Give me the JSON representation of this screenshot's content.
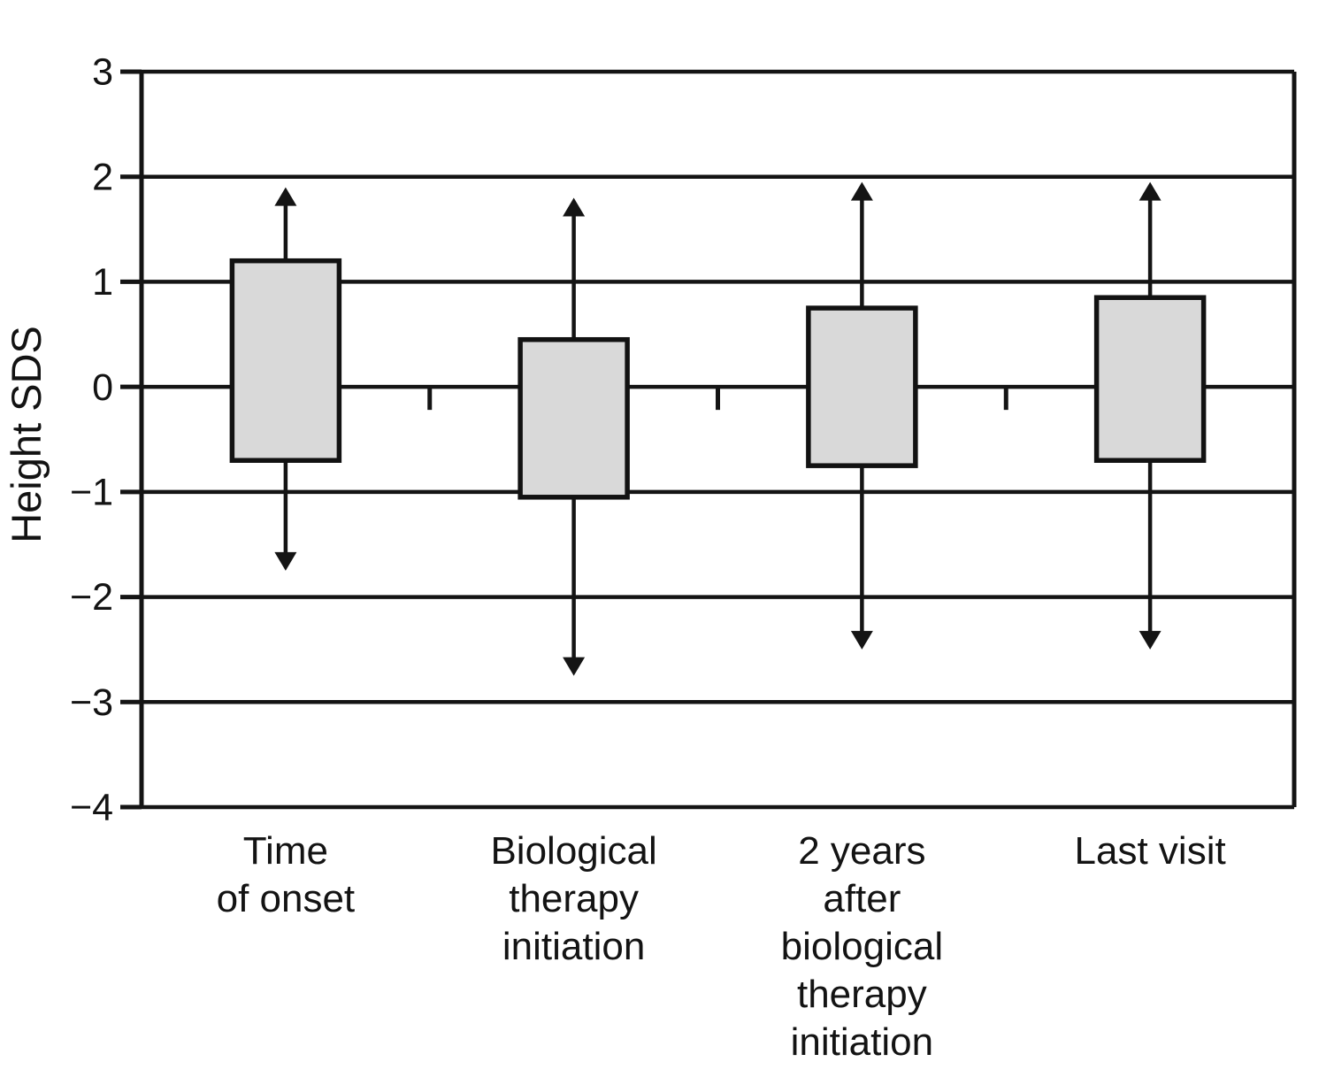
{
  "figure": {
    "background": "#ffffff"
  },
  "chart_data": {
    "type": "box",
    "title": "",
    "xlabel": "",
    "ylabel": "Height SDS",
    "ylim": [
      -4,
      3
    ],
    "grid": "horizontal lines at every integer, full plot width",
    "legend": "none",
    "frame": true,
    "yticks": [
      {
        "v": 3,
        "label": "3"
      },
      {
        "v": 2,
        "label": "2"
      },
      {
        "v": 1,
        "label": "1"
      },
      {
        "v": 0,
        "label": "0"
      },
      {
        "v": -1,
        "label": "−1"
      },
      {
        "v": -2,
        "label": "−2"
      },
      {
        "v": -3,
        "label": "−3"
      },
      {
        "v": -4,
        "label": "−4"
      }
    ],
    "categories": [
      {
        "id": "time-of-onset",
        "label": "Time of onset",
        "label_lines": [
          "Time",
          "of onset"
        ],
        "box_low": -0.7,
        "box_high": 1.2,
        "whisker_low": -1.75,
        "whisker_high": 1.9
      },
      {
        "id": "biological-therapy-initiation",
        "label": "Biological therapy initiation",
        "label_lines": [
          "Biological",
          "therapy",
          "initiation"
        ],
        "box_low": -1.05,
        "box_high": 0.45,
        "whisker_low": -2.75,
        "whisker_high": 1.8
      },
      {
        "id": "2-years-after-biological-therapy-initiation",
        "label": "2 years after biological therapy initiation",
        "label_lines": [
          "2 years",
          "after",
          "biological",
          "therapy",
          "initiation"
        ],
        "box_low": -0.75,
        "box_high": 0.75,
        "whisker_low": -2.5,
        "whisker_high": 1.95
      },
      {
        "id": "last-visit",
        "label": "Last visit",
        "label_lines": [
          "Last visit"
        ],
        "box_low": -0.7,
        "box_high": 0.85,
        "whisker_low": -2.5,
        "whisker_high": 1.95
      }
    ],
    "colors": {
      "box_fill": "#d9d9d9",
      "box_stroke": "#121212",
      "line": "#141414",
      "text": "#131313",
      "background": "#ffffff"
    }
  }
}
